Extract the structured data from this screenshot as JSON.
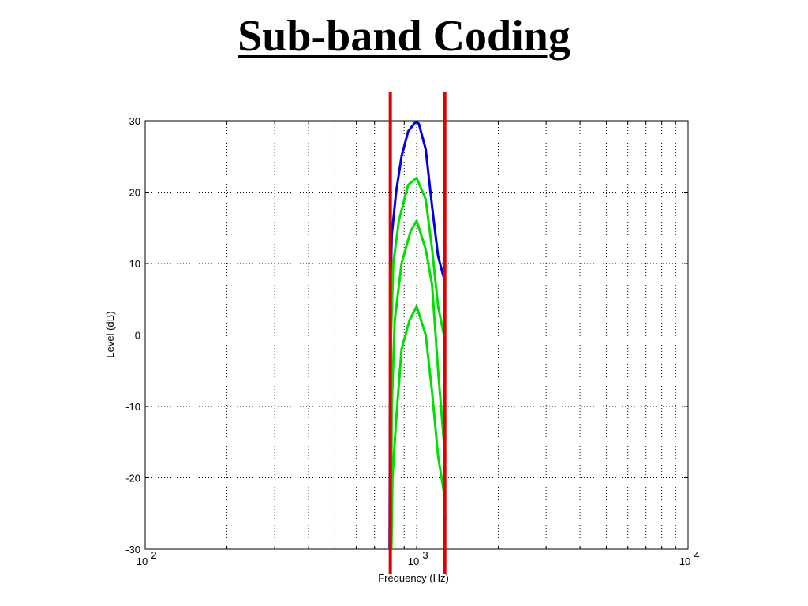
{
  "slide": {
    "title": "Sub-band Coding"
  },
  "chart_data": {
    "type": "line",
    "xlabel": "Frequency (Hz)",
    "ylabel": "Level (dB)",
    "xscale": "log",
    "xlim": [
      100,
      10000
    ],
    "ylim": [
      -30,
      30
    ],
    "grid": true,
    "x_tick_labels": [
      {
        "value": 100,
        "base": "10",
        "exp": "2"
      },
      {
        "value": 1000,
        "base": "10",
        "exp": "3"
      },
      {
        "value": 10000,
        "base": "10",
        "exp": "4"
      }
    ],
    "y_ticks": [
      30,
      20,
      10,
      0,
      -10,
      -20,
      -30
    ],
    "band_edges_hz": [
      800,
      1270
    ],
    "band_edge_color": "#e00000",
    "series": [
      {
        "color": "#0000e0",
        "points": [
          [
            795,
            -30
          ],
          [
            800,
            5
          ],
          [
            810,
            14
          ],
          [
            840,
            20
          ],
          [
            880,
            25
          ],
          [
            930,
            28.5
          ],
          [
            1000,
            30
          ],
          [
            1020,
            29.5
          ],
          [
            1080,
            26
          ],
          [
            1140,
            18
          ],
          [
            1200,
            11
          ],
          [
            1260,
            8
          ],
          [
            1265,
            1
          ],
          [
            1270,
            -24
          ],
          [
            1275,
            -26
          ]
        ]
      },
      {
        "color": "#00e000",
        "points": [
          [
            800,
            -30
          ],
          [
            805,
            0
          ],
          [
            820,
            10
          ],
          [
            860,
            16
          ],
          [
            930,
            21
          ],
          [
            1000,
            22
          ],
          [
            1080,
            19
          ],
          [
            1140,
            12
          ],
          [
            1200,
            4
          ],
          [
            1260,
            0
          ],
          [
            1265,
            -26
          ],
          [
            1270,
            -28
          ]
        ]
      },
      {
        "color": "#00e000",
        "points": [
          [
            805,
            -30
          ],
          [
            810,
            -10
          ],
          [
            830,
            2
          ],
          [
            880,
            10
          ],
          [
            950,
            14.5
          ],
          [
            1000,
            16
          ],
          [
            1080,
            12
          ],
          [
            1140,
            7
          ],
          [
            1200,
            -5
          ],
          [
            1260,
            -15
          ],
          [
            1265,
            -27
          ]
        ]
      },
      {
        "color": "#00e000",
        "points": [
          [
            808,
            -30
          ],
          [
            815,
            -20
          ],
          [
            840,
            -12
          ],
          [
            880,
            -2
          ],
          [
            940,
            2
          ],
          [
            1000,
            4
          ],
          [
            1080,
            0
          ],
          [
            1140,
            -8
          ],
          [
            1200,
            -17
          ],
          [
            1260,
            -22
          ],
          [
            1265,
            -28
          ]
        ]
      }
    ]
  }
}
